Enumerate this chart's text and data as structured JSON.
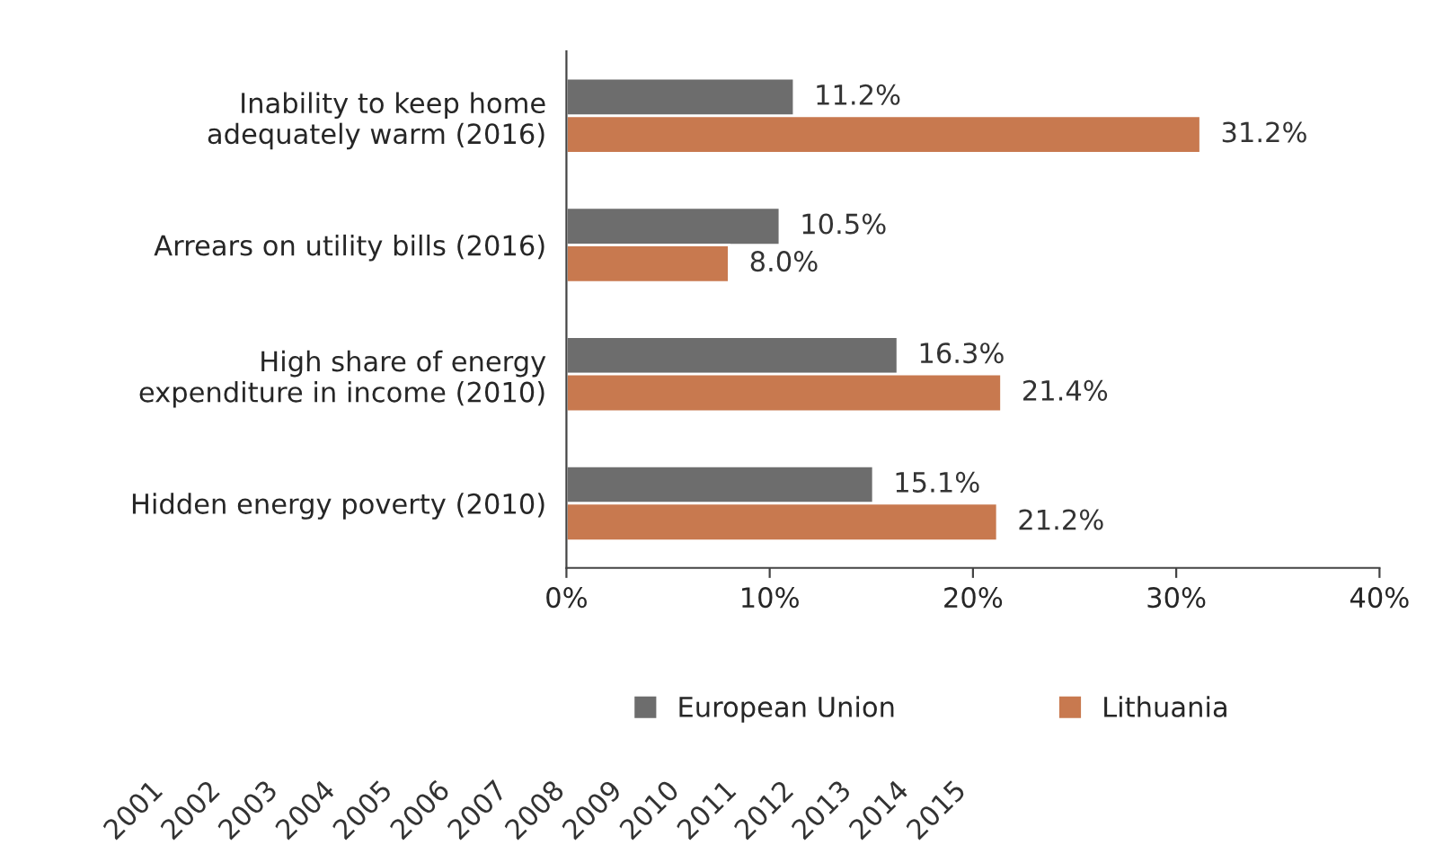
{
  "chart_data": {
    "type": "bar",
    "orientation": "horizontal",
    "categories": [
      "Inability to keep home\nadequately warm (2016)",
      "Arrears on utility bills (2016)",
      "High share of energy\nexpenditure in income (2010)",
      "Hidden energy poverty (2010)"
    ],
    "series": [
      {
        "name": "European Union",
        "color": "#6d6d6d",
        "values": [
          11.2,
          10.5,
          16.3,
          15.1
        ],
        "value_labels": [
          "11.2%",
          "10.5%",
          "16.3%",
          "15.1%"
        ]
      },
      {
        "name": "Lithuania",
        "color": "#c8794f",
        "values": [
          31.2,
          8.0,
          21.4,
          21.2
        ],
        "value_labels": [
          "31.2%",
          "8.0%",
          "21.4%",
          "21.2%"
        ]
      }
    ],
    "xlim": [
      0,
      40
    ],
    "xticks": [
      {
        "value": 0,
        "label": "0%"
      },
      {
        "value": 10,
        "label": "10%"
      },
      {
        "value": 20,
        "label": "20%"
      },
      {
        "value": 30,
        "label": "30%"
      },
      {
        "value": 40,
        "label": "40%"
      }
    ],
    "grid": false,
    "legend": "bottom",
    "annotations": [
      "2001",
      "2002",
      "2003",
      "2004",
      "2005",
      "2006",
      "2007",
      "2008",
      "2009",
      "2010",
      "2011",
      "2012",
      "2013",
      "2014",
      "2015"
    ]
  }
}
